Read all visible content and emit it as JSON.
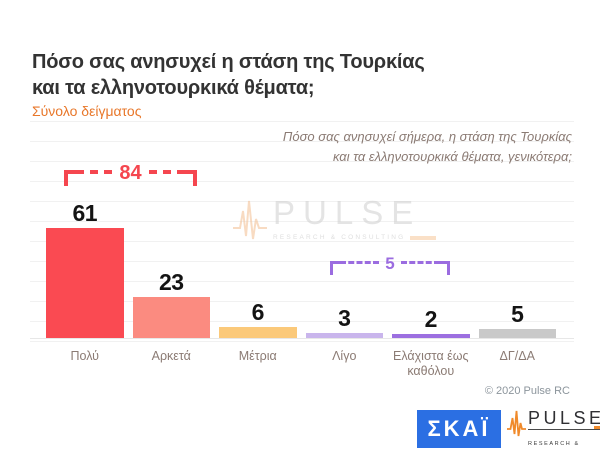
{
  "header": {
    "title_line1": "Πόσο σας ανησυχεί η στάση της Τουρκίας",
    "title_line2": "και τα ελληνοτουρκικά θέματα;",
    "subtitle": "Σύνολο δείγματος",
    "subtitle_color": "#E8772A",
    "annotation_line1": "Πόσο σας ανησυχεί σήμερα, η στάση της Τουρκίας",
    "annotation_line2": "και τα ελληνοτουρκικά θέματα, γενικότερα;"
  },
  "chart_data": {
    "type": "bar",
    "title": "Πόσο σας ανησυχεί η στάση της Τουρκίας και τα ελληνοτουρκικά θέματα;",
    "subtitle": "Σύνολο δείγματος",
    "categories": [
      "Πολύ",
      "Αρκετά",
      "Μέτρια",
      "Λίγο",
      "Ελάχιστα έως καθόλου",
      "ΔΓ/ΔΑ"
    ],
    "values": [
      61,
      23,
      6,
      3,
      2,
      5
    ],
    "colors": [
      "#FA4A52",
      "#FB8B80",
      "#FBC97A",
      "#C9B5EC",
      "#9C6FE0",
      "#C9C9C9"
    ],
    "value_label_color": "#141414",
    "category_label_color": "#8B7B74",
    "xlabel": "",
    "ylabel": "",
    "ylim": [
      0,
      100
    ],
    "grid": "faint-horizontal",
    "legend": "none",
    "brackets": [
      {
        "label": "84",
        "from": "Πολύ",
        "to": "Αρκετά",
        "color": "#F5464F"
      },
      {
        "label": "5",
        "from": "Λίγο",
        "to": "Ελάχιστα έως καθόλου",
        "color": "#9B6CE0"
      }
    ]
  },
  "watermark": {
    "text": "PULSE",
    "subtext": "RESEARCH & CONSULTING"
  },
  "footer": {
    "copyright": "© 2020 Pulse RC",
    "skai_logo": "ΣΚΑΪ",
    "skai_color": "#2B6FE3",
    "pulse_logo": "PULSE",
    "pulse_subtext": "RESEARCH & CONSULTING",
    "pulse_accent": "#F08A2B"
  }
}
